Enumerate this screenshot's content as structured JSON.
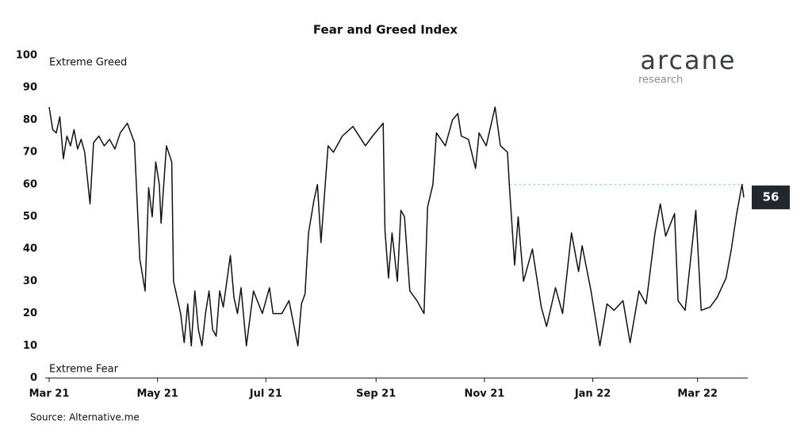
{
  "chart_data": {
    "type": "line",
    "title": "Fear and Greed Index",
    "source": "Source: Alternative.me",
    "logo": {
      "name": "arcane",
      "sub": "research"
    },
    "annotations": {
      "top": "Extreme Greed",
      "bottom": "Extreme Fear"
    },
    "last_value_label": "56",
    "reference_line": {
      "y": 60,
      "x_start": 259
    },
    "xlim": [
      0,
      391
    ],
    "xticks": [
      {
        "value": 0,
        "label": "Mar 21"
      },
      {
        "value": 61,
        "label": "May 21"
      },
      {
        "value": 122,
        "label": "Jul 21"
      },
      {
        "value": 184,
        "label": "Sep 21"
      },
      {
        "value": 245,
        "label": "Nov 21"
      },
      {
        "value": 306,
        "label": "Jan 22"
      },
      {
        "value": 365,
        "label": "Mar 22"
      }
    ],
    "ylim": [
      0,
      100
    ],
    "yticks": [
      0,
      10,
      20,
      30,
      40,
      50,
      60,
      70,
      80,
      90,
      100
    ],
    "series": [
      {
        "name": "Fear and Greed Index",
        "color": "#111111",
        "x": [
          0,
          2,
          4,
          6,
          8,
          10,
          12,
          14,
          16,
          18,
          20,
          23,
          25,
          28,
          31,
          34,
          37,
          40,
          44,
          48,
          51,
          54,
          56,
          58,
          60,
          62,
          63,
          66,
          69,
          70,
          72,
          74,
          76,
          78,
          80,
          82,
          84,
          86,
          88,
          90,
          92,
          94,
          96,
          98,
          102,
          104,
          106,
          108,
          111,
          115,
          120,
          124,
          126,
          131,
          135,
          140,
          142,
          144,
          146,
          149,
          151,
          153,
          157,
          160,
          165,
          171,
          178,
          182,
          188,
          189,
          191,
          193,
          196,
          198,
          200,
          203,
          207,
          211,
          213,
          216,
          218,
          223,
          227,
          230,
          232,
          236,
          240,
          242,
          246,
          251,
          254,
          258,
          259,
          262,
          264,
          267,
          272,
          277,
          280,
          285,
          289,
          294,
          298,
          300,
          305,
          310,
          314,
          318,
          323,
          327,
          332,
          336,
          341,
          344,
          347,
          352,
          354,
          358,
          364,
          367,
          372,
          376,
          381,
          384,
          387,
          390,
          391
        ],
        "values": [
          84,
          77,
          76,
          81,
          68,
          75,
          72,
          77,
          71,
          74,
          70,
          54,
          73,
          75,
          72,
          74,
          71,
          76,
          79,
          73,
          37,
          27,
          59,
          50,
          67,
          60,
          48,
          72,
          67,
          30,
          25,
          20,
          11,
          23,
          10,
          27,
          15,
          10,
          20,
          27,
          15,
          13,
          27,
          22,
          38,
          25,
          20,
          28,
          10,
          27,
          20,
          28,
          20,
          20,
          24,
          10,
          23,
          26,
          45,
          55,
          60,
          42,
          72,
          70,
          75,
          78,
          72,
          75,
          79,
          46,
          31,
          45,
          30,
          52,
          50,
          27,
          24,
          20,
          53,
          60,
          76,
          72,
          80,
          82,
          75,
          74,
          65,
          76,
          72,
          84,
          72,
          70,
          60,
          35,
          50,
          30,
          40,
          22,
          16,
          28,
          20,
          45,
          33,
          41,
          27,
          10,
          23,
          21,
          24,
          11,
          27,
          23,
          45,
          54,
          44,
          51,
          24,
          21,
          52,
          21,
          22,
          25,
          31,
          40,
          51,
          60,
          56
        ]
      }
    ]
  }
}
